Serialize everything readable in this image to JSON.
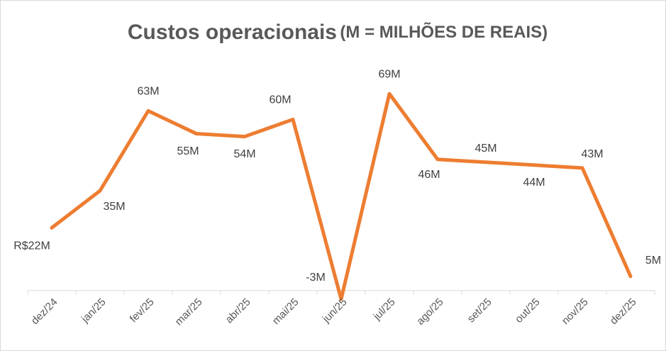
{
  "chart_data": {
    "type": "line",
    "title": "Custos operacionais",
    "subtitle": "(M = MILHÕES DE REAIS)",
    "categories": [
      "dez/24",
      "jan/25",
      "fev/25",
      "mar/25",
      "abr/25",
      "mai/25",
      "jun/25",
      "jul/25",
      "ago/25",
      "set/25",
      "out/25",
      "nov/25",
      "dez/25"
    ],
    "values": [
      22,
      35,
      63,
      55,
      54,
      60,
      -3,
      69,
      46,
      45,
      44,
      43,
      5
    ],
    "value_labels": [
      "R$22M",
      "35M",
      "63M",
      "55M",
      "54M",
      "60M",
      "-3M",
      "69M",
      "46M",
      "45M",
      "44M",
      "43M",
      "5M"
    ],
    "color": "#ED7D31",
    "ylim": [
      -10,
      80
    ]
  }
}
